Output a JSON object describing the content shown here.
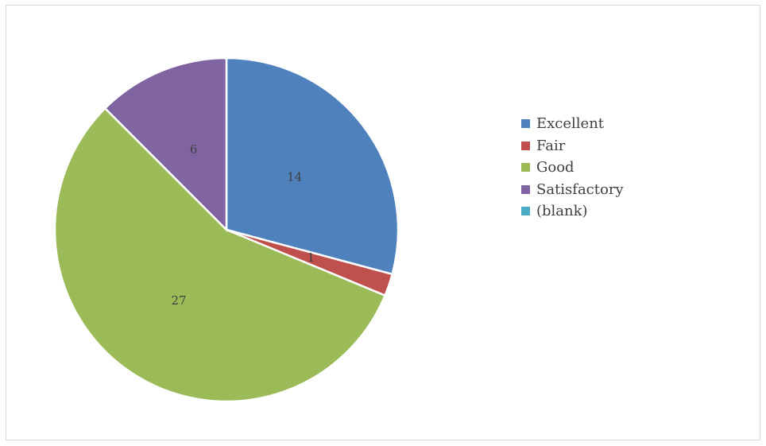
{
  "chart_data": {
    "type": "pie",
    "title": "",
    "legend_position": "right",
    "slices": [
      {
        "label": "Excellent",
        "value": 14,
        "color": "#4f81bd",
        "data_label": "14"
      },
      {
        "label": "Fair",
        "value": 1,
        "color": "#c0504d",
        "data_label": "1"
      },
      {
        "label": "Good",
        "value": 27,
        "color": "#9bbb59",
        "data_label": "27"
      },
      {
        "label": "Satisfactory",
        "value": 6,
        "color": "#8064a2",
        "data_label": "6"
      },
      {
        "label": "(blank)",
        "value": 0,
        "color": "#4bacc6",
        "data_label": ""
      }
    ]
  }
}
